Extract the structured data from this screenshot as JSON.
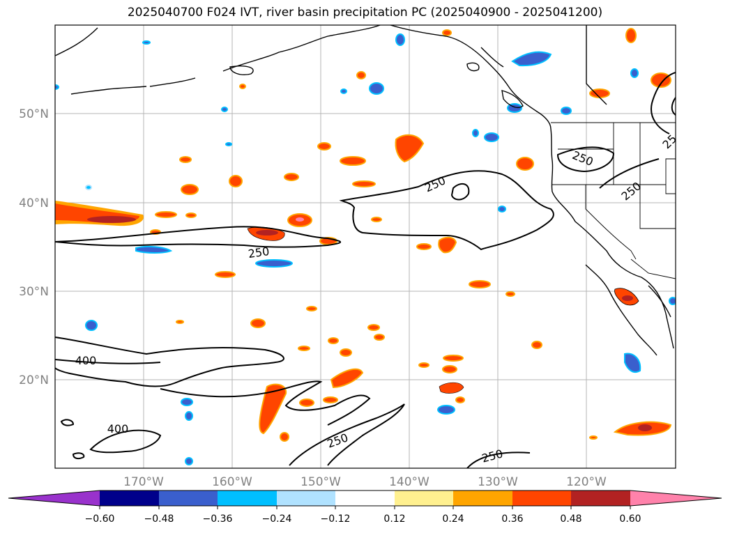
{
  "title": "2025040700 F024 IVT, river basin precipitation PC (2025040900 - 2025041200)",
  "latitude_labels": [
    "50°N",
    "40°N",
    "30°N",
    "20°N"
  ],
  "longitude_labels": [
    "170°W",
    "160°W",
    "150°W",
    "140°W",
    "130°W",
    "120°W"
  ],
  "contour_labels": [
    "250",
    "250",
    "250",
    "250",
    "250",
    "250",
    "25",
    "400",
    "400"
  ],
  "colorbar": {
    "tick_labels": [
      "−0.60",
      "−0.48",
      "−0.36",
      "−0.24",
      "−0.12",
      "0.12",
      "0.24",
      "0.36",
      "0.48",
      "0.60"
    ],
    "colors": [
      "#9932cc",
      "#00008b",
      "#3a5fcd",
      "#00bfff",
      "#b0e2ff",
      "#ffffff",
      "#fff08f",
      "#ffa500",
      "#ff4500",
      "#b22222",
      "#ff82ab"
    ]
  }
}
